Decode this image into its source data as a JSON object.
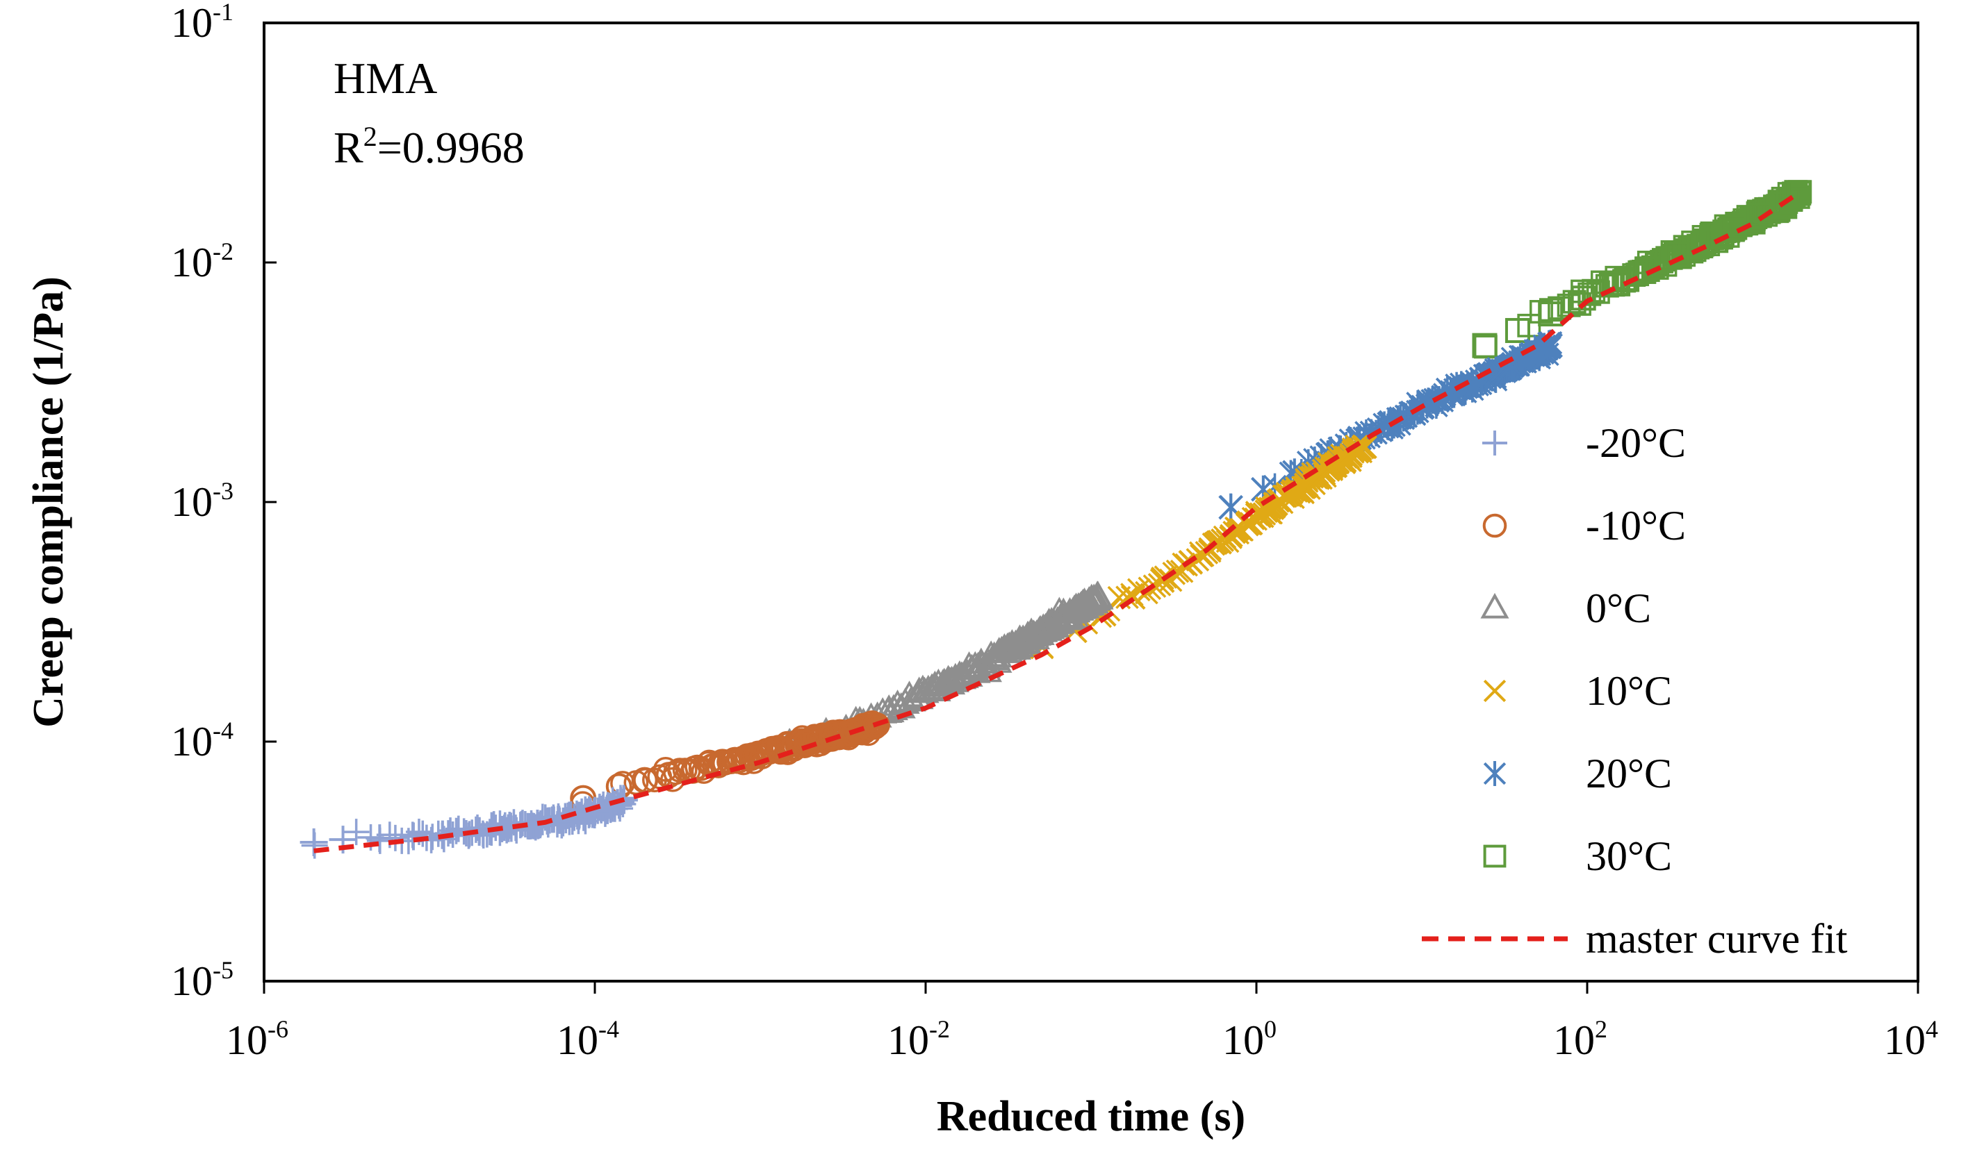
{
  "chart_data": {
    "type": "scatter",
    "xscale": "log",
    "yscale": "log",
    "xlabel": "Reduced time (s)",
    "ylabel": "Creep compliance (1/Pa)",
    "xlim": [
      1e-06,
      10000
    ],
    "ylim": [
      1e-05,
      0.1
    ],
    "x_ticks": [
      {
        "base": "10",
        "exp": "-6"
      },
      {
        "base": "10",
        "exp": "-4"
      },
      {
        "base": "10",
        "exp": "-2"
      },
      {
        "base": "10",
        "exp": "0"
      },
      {
        "base": "10",
        "exp": "2"
      },
      {
        "base": "10",
        "exp": "4"
      }
    ],
    "y_ticks": [
      {
        "base": "10",
        "exp": "-5"
      },
      {
        "base": "10",
        "exp": "-4"
      },
      {
        "base": "10",
        "exp": "-3"
      },
      {
        "base": "10",
        "exp": "-2"
      },
      {
        "base": "10",
        "exp": "-1"
      }
    ],
    "annotation": {
      "material": "HMA",
      "r2_prefix": "R",
      "r2_sup": "2",
      "r2_value": "=0.9968"
    },
    "legend_position": "right",
    "series": [
      {
        "name": "-20°C",
        "marker": "plus",
        "color": "#8FA2D4",
        "x_range": [
          2e-06,
          0.00015
        ],
        "x": [
          2e-06,
          3e-06,
          5e-06,
          8e-06,
          1.2e-05,
          2e-05,
          3e-05,
          4.5e-05,
          6e-05,
          8e-05,
          0.0001,
          0.000125,
          0.00015
        ],
        "y": [
          3.8e-05,
          3.9e-05,
          3.95e-05,
          4.02e-05,
          4.1e-05,
          4.2e-05,
          4.35e-05,
          4.55e-05,
          4.72e-05,
          4.9e-05,
          5.1e-05,
          5.35e-05,
          5.7e-05
        ]
      },
      {
        "name": "-10°C",
        "marker": "circle",
        "color": "#C8692F",
        "x_range": [
          8.5e-05,
          0.005
        ],
        "x": [
          8.5e-05,
          0.00014,
          0.0002,
          0.00028,
          0.0004,
          0.0006,
          0.0009,
          0.0013,
          0.0019,
          0.0027,
          0.0037,
          0.005
        ],
        "y": [
          5.8e-05,
          6.5e-05,
          6.9e-05,
          7.25e-05,
          7.7e-05,
          8.2e-05,
          8.75e-05,
          9.3e-05,
          9.9e-05,
          0.000105,
          0.00011,
          0.000117
        ]
      },
      {
        "name": "0°C",
        "marker": "triangle",
        "color": "#8E8E8E",
        "x_range": [
          0.0015,
          0.11
        ],
        "x": [
          0.0015,
          0.0025,
          0.004,
          0.006,
          0.009,
          0.014,
          0.022,
          0.035,
          0.055,
          0.08,
          0.11
        ],
        "y": [
          9.7e-05,
          0.000108,
          0.00012,
          0.000134,
          0.000152,
          0.000175,
          0.000205,
          0.00025,
          0.0003,
          0.00035,
          0.0004
        ]
      },
      {
        "name": "10°C",
        "marker": "x",
        "color": "#E0A915",
        "x_range": [
          0.05,
          4.5
        ],
        "x": [
          0.05,
          0.08,
          0.12,
          0.18,
          0.27,
          0.4,
          0.6,
          0.9,
          1.3,
          2,
          3,
          4.5
        ],
        "y": [
          0.00025,
          0.00029,
          0.00034,
          0.0004,
          0.00047,
          0.00056,
          0.00068,
          0.00082,
          0.00098,
          0.00118,
          0.00142,
          0.0017
        ]
      },
      {
        "name": "20°C",
        "marker": "asterisk",
        "color": "#4E81BD",
        "x_range": [
          0.7,
          60
        ],
        "x": [
          0.7,
          1.1,
          1.7,
          2.7,
          4.2,
          6.5,
          10,
          15,
          23,
          35,
          50,
          60
        ],
        "y": [
          0.00095,
          0.00113,
          0.00133,
          0.00158,
          0.00185,
          0.00215,
          0.00248,
          0.00285,
          0.00325,
          0.0037,
          0.00418,
          0.0045
        ]
      },
      {
        "name": "30°C",
        "marker": "square",
        "color": "#5E9B3C",
        "x_range": [
          24,
          1900
        ],
        "x": [
          24,
          38,
          60,
          95,
          150,
          230,
          350,
          520,
          780,
          1100,
          1500,
          1900
        ],
        "y": [
          0.0045,
          0.0052,
          0.0061,
          0.0071,
          0.0082,
          0.0094,
          0.0108,
          0.0123,
          0.014,
          0.0157,
          0.0175,
          0.0195
        ]
      },
      {
        "name": "master curve fit",
        "marker": "dashed-line",
        "color": "#E4201B",
        "x": [
          2e-06,
          1e-05,
          5e-05,
          0.0001,
          0.0005,
          0.001,
          0.005,
          0.01,
          0.05,
          0.1,
          0.5,
          1,
          5,
          10,
          50,
          100,
          500,
          1000,
          1900
        ],
        "y": [
          3.5e-05,
          3.95e-05,
          4.6e-05,
          5.3e-05,
          7.2e-05,
          8.2e-05,
          0.000118,
          0.000138,
          0.00023,
          0.0003,
          0.00063,
          0.00095,
          0.0019,
          0.0025,
          0.0045,
          0.0069,
          0.0115,
          0.0145,
          0.0195
        ]
      }
    ]
  }
}
